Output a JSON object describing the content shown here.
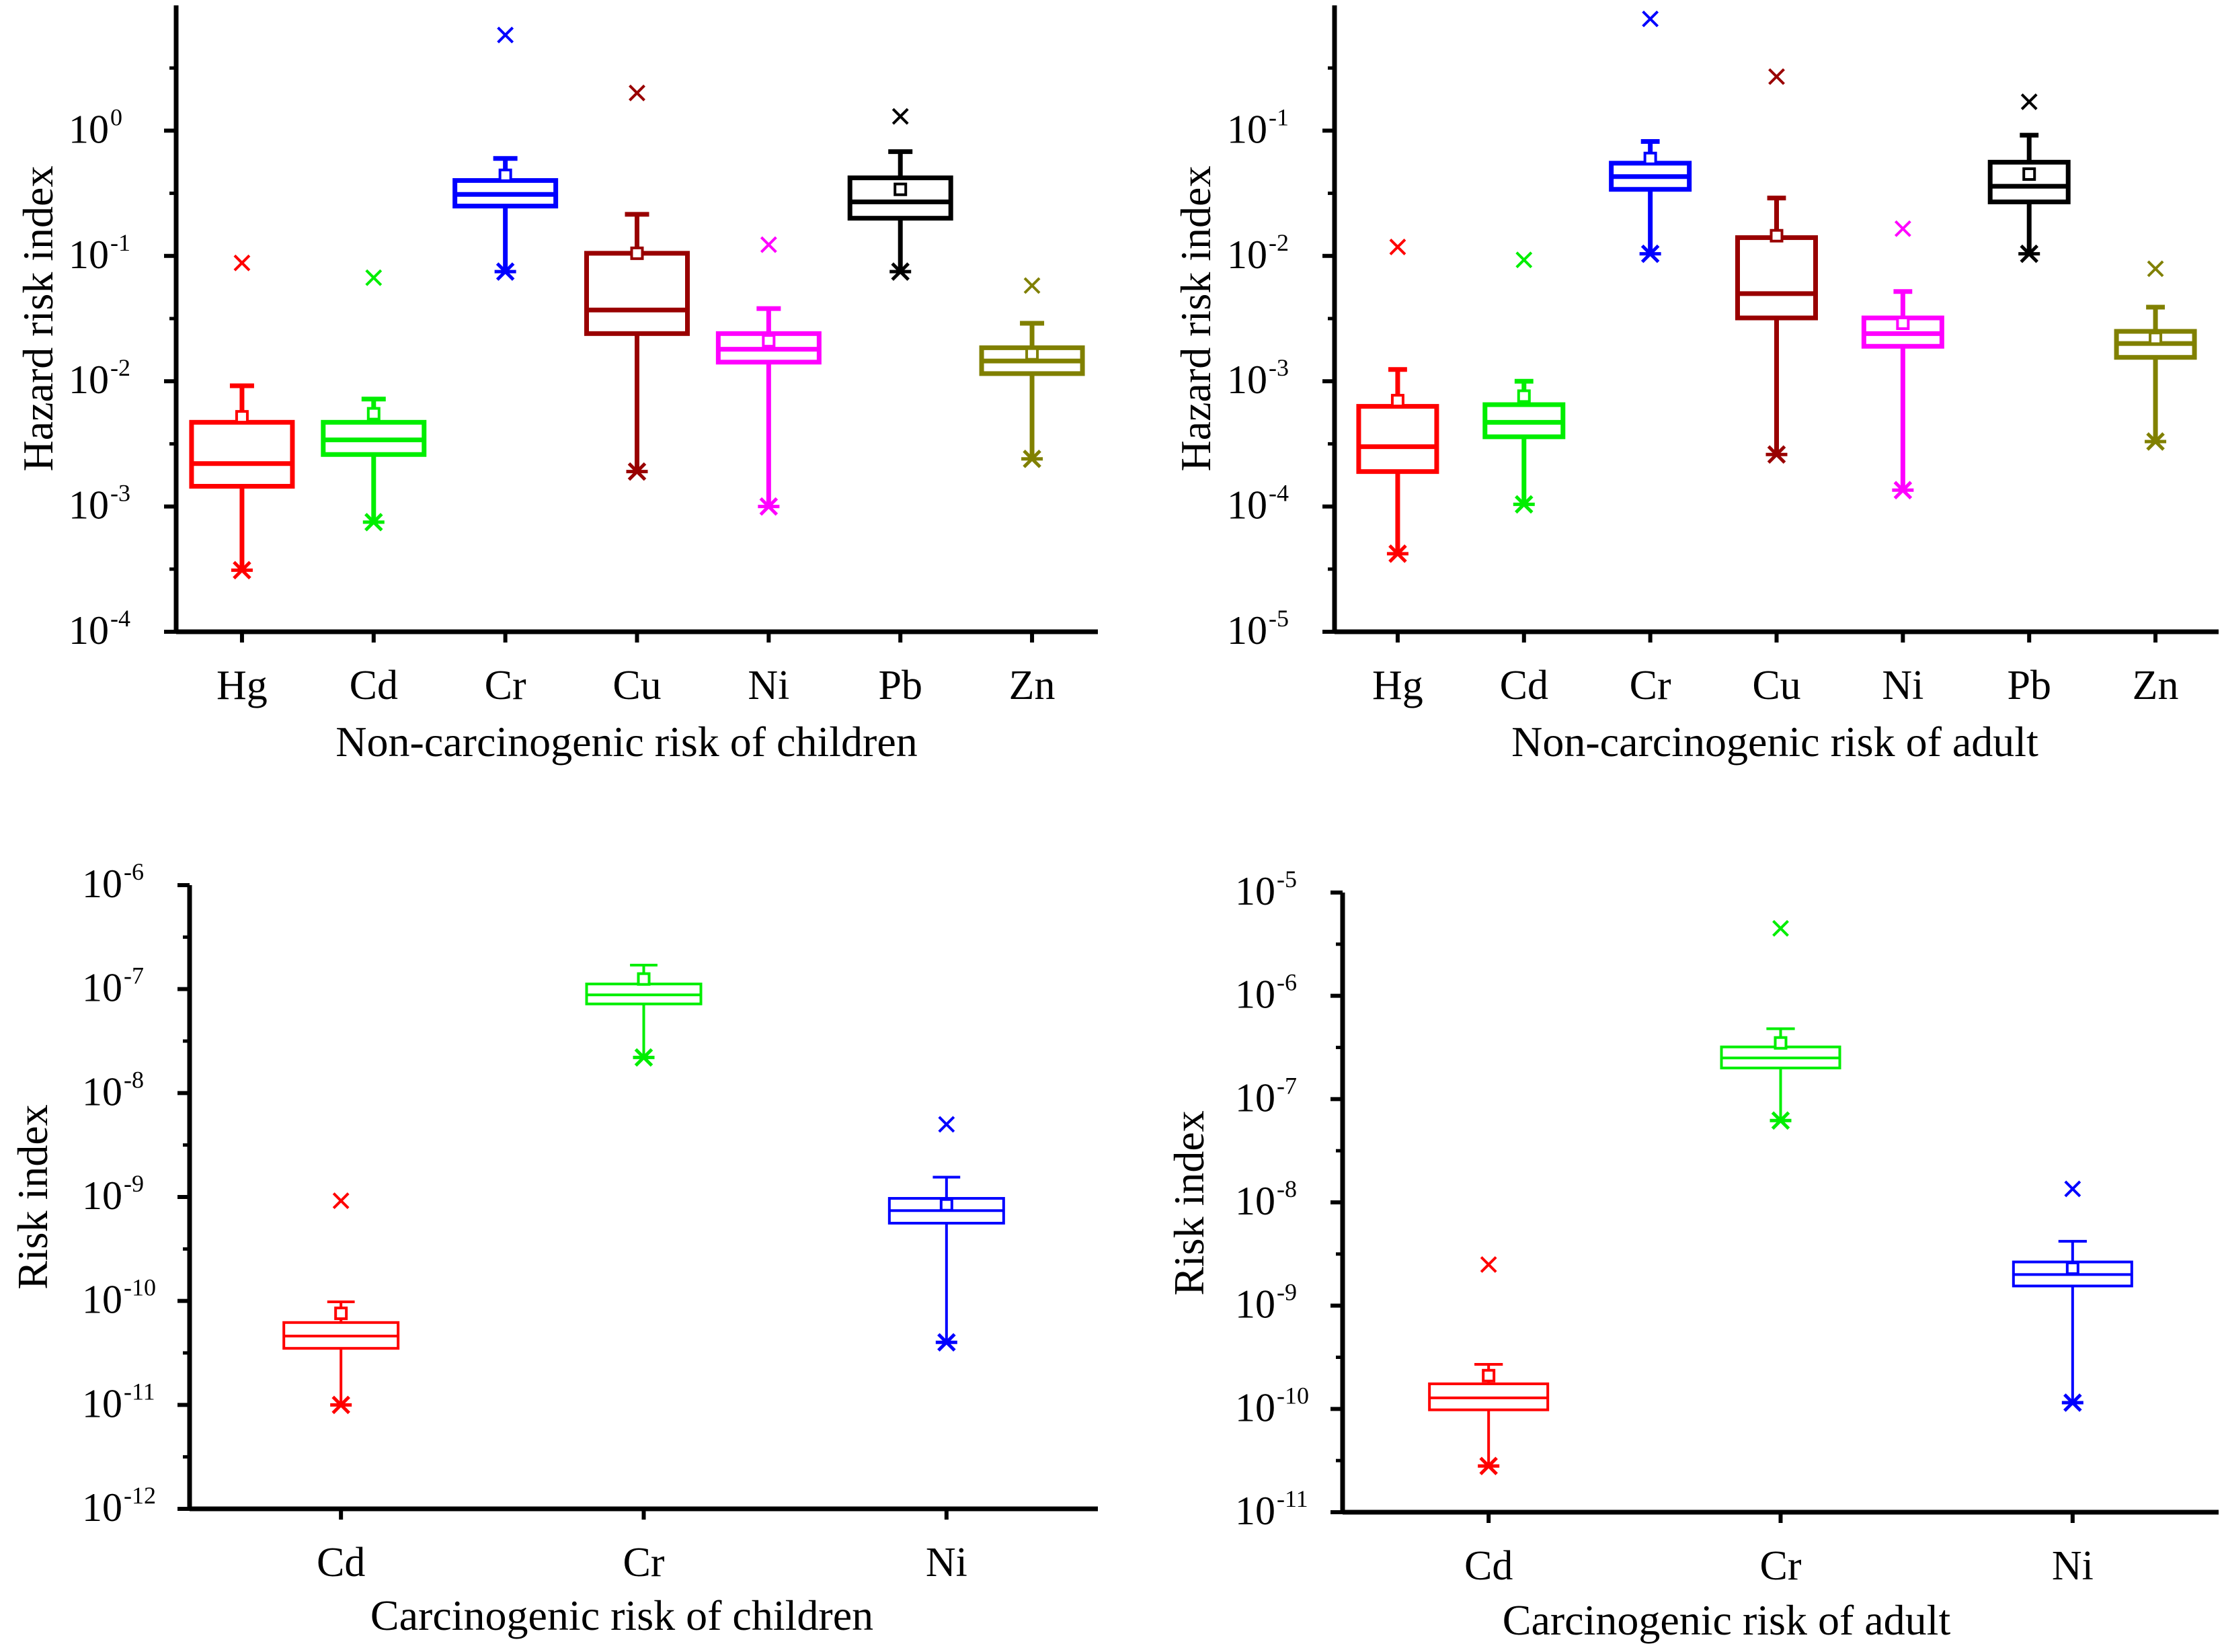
{
  "chart_data": [
    {
      "type": "box",
      "id": "nc-children",
      "xlabel": "Non-carcinogenic risk of children",
      "ylabel": "Hazard risk index",
      "yscale": "log",
      "ylim_exp": [
        -4,
        1
      ],
      "ytick_exps": [
        -4,
        -3,
        -2,
        -1,
        0
      ],
      "ytick_labels": [
        "10",
        "10",
        "10",
        "10",
        "10"
      ],
      "ytick_sups": [
        "-4",
        "-3",
        "-2",
        "-1",
        "0"
      ],
      "categories": [
        "Hg",
        "Cd",
        "Cr",
        "Cu",
        "Ni",
        "Pb",
        "Zn"
      ],
      "colors": [
        "#ff0000",
        "#00ee00",
        "#0000ff",
        "#990000",
        "#ff00ff",
        "#000000",
        "#808000"
      ],
      "boxes": [
        {
          "min": 0.00031,
          "q1": 0.00145,
          "median": 0.0022,
          "q3": 0.0047,
          "whisker_high": 0.0092,
          "mean": 0.0052,
          "outlier": 0.088
        },
        {
          "min": 0.00075,
          "q1": 0.0026,
          "median": 0.0034,
          "q3": 0.0047,
          "whisker_high": 0.0072,
          "mean": 0.0055,
          "outlier": 0.067
        },
        {
          "min": 0.075,
          "q1": 0.25,
          "median": 0.31,
          "q3": 0.4,
          "whisker_high": 0.6,
          "mean": 0.44,
          "outlier": 5.8
        },
        {
          "min": 0.0019,
          "q1": 0.024,
          "median": 0.037,
          "q3": 0.105,
          "whisker_high": 0.215,
          "mean": 0.105,
          "outlier": 2.0
        },
        {
          "min": 0.001,
          "q1": 0.0142,
          "median": 0.018,
          "q3": 0.024,
          "whisker_high": 0.038,
          "mean": 0.021,
          "outlier": 0.123
        },
        {
          "min": 0.075,
          "q1": 0.2,
          "median": 0.27,
          "q3": 0.42,
          "whisker_high": 0.68,
          "mean": 0.34,
          "outlier": 1.3
        },
        {
          "min": 0.0024,
          "q1": 0.0115,
          "median": 0.0145,
          "q3": 0.0185,
          "whisker_high": 0.029,
          "mean": 0.0165,
          "outlier": 0.058
        }
      ]
    },
    {
      "type": "box",
      "id": "nc-adult",
      "xlabel": "Non-carcinogenic risk of adult",
      "ylabel": "Hazard risk index",
      "yscale": "log",
      "ylim_exp": [
        -5,
        0
      ],
      "ytick_exps": [
        -5,
        -4,
        -3,
        -2,
        -1
      ],
      "ytick_labels": [
        "10",
        "10",
        "10",
        "10",
        "10"
      ],
      "ytick_sups": [
        "-5",
        "-4",
        "-3",
        "-2",
        "-1"
      ],
      "categories": [
        "Hg",
        "Cd",
        "Cr",
        "Cu",
        "Ni",
        "Pb",
        "Zn"
      ],
      "colors": [
        "#ff0000",
        "#00ee00",
        "#0000ff",
        "#990000",
        "#ff00ff",
        "#000000",
        "#808000"
      ],
      "boxes": [
        {
          "min": 4.2e-05,
          "q1": 0.00019,
          "median": 0.0003,
          "q3": 0.00063,
          "whisker_high": 0.00124,
          "mean": 0.0007,
          "outlier": 0.0118
        },
        {
          "min": 0.000104,
          "q1": 0.00036,
          "median": 0.00047,
          "q3": 0.00065,
          "whisker_high": 0.001,
          "mean": 0.00076,
          "outlier": 0.0093
        },
        {
          "min": 0.0104,
          "q1": 0.034,
          "median": 0.043,
          "q3": 0.055,
          "whisker_high": 0.082,
          "mean": 0.06,
          "outlier": 0.78
        },
        {
          "min": 0.00026,
          "q1": 0.0032,
          "median": 0.005,
          "q3": 0.014,
          "whisker_high": 0.029,
          "mean": 0.0145,
          "outlier": 0.27
        },
        {
          "min": 0.000135,
          "q1": 0.0019,
          "median": 0.0024,
          "q3": 0.0032,
          "whisker_high": 0.0052,
          "mean": 0.0029,
          "outlier": 0.0165
        },
        {
          "min": 0.0104,
          "q1": 0.027,
          "median": 0.036,
          "q3": 0.056,
          "whisker_high": 0.092,
          "mean": 0.045,
          "outlier": 0.17
        },
        {
          "min": 0.00033,
          "q1": 0.00155,
          "median": 0.002,
          "q3": 0.0025,
          "whisker_high": 0.0039,
          "mean": 0.0022,
          "outlier": 0.0079
        }
      ]
    },
    {
      "type": "box",
      "id": "c-children",
      "xlabel": "Carcinogenic risk of children",
      "ylabel": "Risk index",
      "yscale": "log",
      "ylim_exp": [
        -12,
        -6
      ],
      "ytick_exps": [
        -12,
        -11,
        -10,
        -9,
        -8,
        -7,
        -6
      ],
      "ytick_labels": [
        "10",
        "10",
        "10",
        "10",
        "10",
        "10",
        "10"
      ],
      "ytick_sups": [
        "-12",
        "-11",
        "-10",
        "-9",
        "-8",
        "-7",
        "-6"
      ],
      "categories": [
        "Cd",
        "Cr",
        "Ni"
      ],
      "colors": [
        "#ff0000",
        "#00ee00",
        "#0000ff"
      ],
      "boxes": [
        {
          "min": 1e-11,
          "q1": 3.5e-11,
          "median": 4.6e-11,
          "q3": 6.2e-11,
          "whisker_high": 9.8e-11,
          "mean": 7.6e-11,
          "outlier": 9.2e-10
        },
        {
          "min": 2.2e-08,
          "q1": 7.2e-08,
          "median": 8.8e-08,
          "q3": 1.12e-07,
          "whisker_high": 1.7e-07,
          "mean": 1.25e-07,
          "outlier": null
        },
        {
          "min": 4e-11,
          "q1": 5.6e-10,
          "median": 7.4e-10,
          "q3": 9.7e-10,
          "whisker_high": 1.55e-09,
          "mean": 8.4e-10,
          "outlier": 5e-09
        }
      ]
    },
    {
      "type": "box",
      "id": "c-adult",
      "xlabel": "Carcinogenic risk of adult",
      "ylabel": "Risk index",
      "yscale": "log",
      "ylim_exp": [
        -11,
        -5
      ],
      "ytick_exps": [
        -11,
        -10,
        -9,
        -8,
        -7,
        -6,
        -5
      ],
      "ytick_labels": [
        "10",
        "10",
        "10",
        "10",
        "10",
        "10",
        "10"
      ],
      "ytick_sups": [
        "-11",
        "-10",
        "-9",
        "-8",
        "-7",
        "-6",
        "-5"
      ],
      "categories": [
        "Cd",
        "Cr",
        "Ni"
      ],
      "colors": [
        "#ff0000",
        "#00ee00",
        "#0000ff"
      ],
      "boxes": [
        {
          "min": 2.8e-11,
          "q1": 9.8e-11,
          "median": 1.28e-10,
          "q3": 1.75e-10,
          "whisker_high": 2.7e-10,
          "mean": 2.1e-10,
          "outlier": 2.5e-09
        },
        {
          "min": 6.2e-08,
          "q1": 2e-07,
          "median": 2.5e-07,
          "q3": 3.2e-07,
          "whisker_high": 4.8e-07,
          "mean": 3.5e-07,
          "outlier": 4.5e-06
        },
        {
          "min": 1.15e-10,
          "q1": 1.55e-09,
          "median": 2e-09,
          "q3": 2.65e-09,
          "whisker_high": 4.2e-09,
          "mean": 2.3e-09,
          "outlier": 1.35e-08
        }
      ]
    }
  ]
}
